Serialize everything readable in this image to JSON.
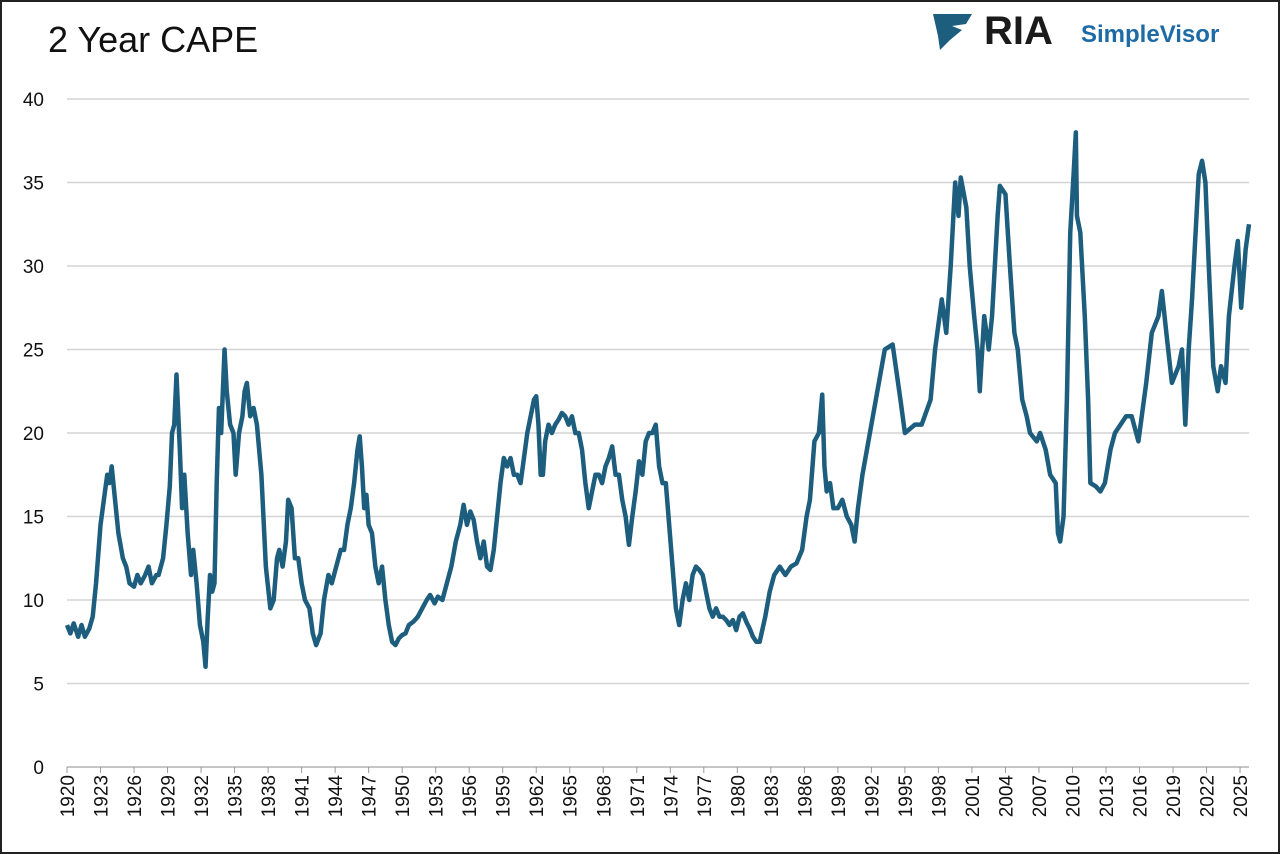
{
  "chart_data": {
    "type": "line",
    "title": "2 Year CAPE",
    "logo": {
      "brand": "RIA",
      "product": "SimpleVisor"
    },
    "xlim": [
      1920,
      2025.8
    ],
    "ylim": [
      0,
      40
    ],
    "yticks": [
      0,
      5,
      10,
      15,
      20,
      25,
      30,
      35,
      40
    ],
    "xticks": [
      1920,
      1923,
      1926,
      1929,
      1932,
      1935,
      1938,
      1941,
      1944,
      1947,
      1950,
      1953,
      1956,
      1959,
      1962,
      1965,
      1968,
      1971,
      1974,
      1977,
      1980,
      1983,
      1986,
      1989,
      1992,
      1995,
      1998,
      2001,
      2004,
      2007,
      2010,
      2013,
      2016,
      2019,
      2022,
      2025
    ],
    "grid": true,
    "series": [
      {
        "name": "2 Year CAPE",
        "color": "#1d5d7e",
        "x": [
          1920,
          1920.3,
          1920.6,
          1921,
          1921.3,
          1921.6,
          1922,
          1922.3,
          1922.6,
          1923,
          1923.3,
          1923.6,
          1923.8,
          1924,
          1924.3,
          1924.6,
          1925,
          1925.3,
          1925.6,
          1926,
          1926.3,
          1926.6,
          1927,
          1927.3,
          1927.6,
          1928,
          1928.2,
          1928.6,
          1928.9,
          1929.2,
          1929.4,
          1929.6,
          1929.8,
          1930.1,
          1930.3,
          1930.5,
          1930.8,
          1931.1,
          1931.3,
          1931.6,
          1931.9,
          1932.2,
          1932.4,
          1932.6,
          1932.8,
          1933,
          1933.2,
          1933.4,
          1933.6,
          1933.8,
          1934.1,
          1934.3,
          1934.6,
          1934.9,
          1935.1,
          1935.4,
          1935.7,
          1935.9,
          1936.1,
          1936.4,
          1936.7,
          1937,
          1937.4,
          1937.8,
          1938.2,
          1938.5,
          1938.8,
          1939,
          1939.3,
          1939.6,
          1939.8,
          1940.1,
          1940.4,
          1940.7,
          1941,
          1941.3,
          1941.7,
          1942,
          1942.3,
          1942.7,
          1943,
          1943.4,
          1943.7,
          1944.1,
          1944.5,
          1944.8,
          1945.1,
          1945.4,
          1945.7,
          1946,
          1946.2,
          1946.4,
          1946.6,
          1946.8,
          1947,
          1947.3,
          1947.6,
          1947.9,
          1948.2,
          1948.5,
          1948.8,
          1949.1,
          1949.4,
          1949.7,
          1950,
          1950.3,
          1950.6,
          1951,
          1951.4,
          1951.8,
          1952.2,
          1952.5,
          1952.9,
          1953.2,
          1953.6,
          1954,
          1954.4,
          1954.8,
          1955.2,
          1955.5,
          1955.8,
          1956.1,
          1956.4,
          1956.7,
          1957,
          1957.3,
          1957.6,
          1957.9,
          1958.2,
          1958.5,
          1958.8,
          1959.1,
          1959.4,
          1959.7,
          1960,
          1960.3,
          1960.6,
          1960.9,
          1961.2,
          1961.5,
          1961.8,
          1962,
          1962.2,
          1962.4,
          1962.6,
          1962.8,
          1963.1,
          1963.4,
          1963.7,
          1964,
          1964.3,
          1964.6,
          1964.9,
          1965.2,
          1965.5,
          1965.8,
          1966.1,
          1966.4,
          1966.7,
          1967,
          1967.3,
          1967.6,
          1967.9,
          1968.2,
          1968.5,
          1968.8,
          1969.1,
          1969.4,
          1969.7,
          1970,
          1970.3,
          1970.6,
          1970.9,
          1971.2,
          1971.5,
          1971.8,
          1972.1,
          1972.4,
          1972.7,
          1973,
          1973.3,
          1973.6,
          1973.9,
          1974.2,
          1974.5,
          1974.8,
          1975.1,
          1975.4,
          1975.7,
          1976,
          1976.3,
          1976.6,
          1976.9,
          1977.2,
          1977.5,
          1977.8,
          1978.1,
          1978.4,
          1978.7,
          1979,
          1979.3,
          1979.6,
          1979.9,
          1980.2,
          1980.5,
          1980.8,
          1981.1,
          1981.4,
          1981.7,
          1982,
          1982.5,
          1982.9,
          1983.3,
          1983.8,
          1984.3,
          1984.8,
          1985.3,
          1985.8,
          1986.2,
          1986.5,
          1986.9,
          1987.3,
          1987.6,
          1987.8,
          1988,
          1988.3,
          1988.6,
          1989,
          1989.4,
          1989.8,
          1990.2,
          1990.5,
          1990.8,
          1991.2,
          1991.6,
          1992,
          1992.4,
          1992.8,
          1993.2,
          1993.9,
          1994.6,
          1995,
          1995.9,
          1996.5,
          1997.3,
          1997.7,
          1998.3,
          1998.7,
          1999.1,
          1999.5,
          1999.8,
          2000,
          2000.5,
          2000.8,
          2001.2,
          2001.5,
          2001.7,
          2002.1,
          2002.5,
          2002.8,
          2003.3,
          2003.5,
          2004,
          2004.4,
          2004.8,
          2005.1,
          2005.5,
          2005.9,
          2006.2,
          2006.8,
          2007.1,
          2007.6,
          2008,
          2008.5,
          2008.7,
          2008.9,
          2009.2,
          2009.5,
          2009.8,
          2010.1,
          2010.3,
          2010.4,
          2010.7,
          2011.1,
          2011.4,
          2011.6,
          2012.1,
          2012.5,
          2012.9,
          2013.4,
          2013.8,
          2014.3,
          2014.8,
          2015.3,
          2015.9,
          2016.2,
          2016.6,
          2017.1,
          2017.7,
          2018,
          2018.4,
          2018.9,
          2019.5,
          2019.8,
          2020.1,
          2020.4,
          2020.7,
          2021.1,
          2021.3,
          2021.6,
          2021.9,
          2022.2,
          2022.6,
          2023,
          2023.3,
          2023.7,
          2024,
          2024.5,
          2024.8,
          2025.1,
          2025.5,
          2025.8
        ],
        "values": [
          8.5,
          8.0,
          8.6,
          7.8,
          8.5,
          7.8,
          8.3,
          9,
          11,
          14.5,
          16,
          17.5,
          17,
          18,
          16,
          14,
          12.5,
          12,
          11,
          10.8,
          11.5,
          11,
          11.5,
          12,
          11,
          11.5,
          11.5,
          12.5,
          14.5,
          16.8,
          20,
          20.5,
          23.5,
          19,
          15.5,
          17.5,
          14,
          11.5,
          13,
          11,
          8.5,
          7.5,
          6,
          9,
          11.5,
          10.5,
          11,
          17,
          21.5,
          20,
          25,
          22.5,
          20.5,
          20,
          17.5,
          20,
          21,
          22.5,
          23,
          21,
          21.5,
          20.5,
          17.5,
          12,
          9.5,
          10,
          12.5,
          13,
          12,
          13.5,
          16,
          15.5,
          12.5,
          12.5,
          11,
          10,
          9.5,
          8,
          7.3,
          8,
          10,
          11.5,
          11,
          12,
          13,
          13,
          14.5,
          15.5,
          17,
          19,
          19.8,
          18,
          15.5,
          16.3,
          14.5,
          14,
          12,
          11,
          12,
          10,
          8.5,
          7.5,
          7.3,
          7.7,
          7.9,
          8,
          8.5,
          8.7,
          9,
          9.5,
          10,
          10.3,
          9.8,
          10.2,
          10,
          11,
          12,
          13.5,
          14.5,
          15.7,
          14.5,
          15.3,
          14.8,
          13.5,
          12.5,
          13.5,
          12,
          11.8,
          13,
          15,
          17,
          18.5,
          18,
          18.5,
          17.5,
          17.5,
          17,
          18.5,
          20,
          21,
          22,
          22.2,
          20.5,
          17.5,
          17.5,
          19.5,
          20.5,
          20,
          20.5,
          20.8,
          21.2,
          21,
          20.5,
          21,
          20,
          20,
          19,
          17,
          15.5,
          16.5,
          17.5,
          17.5,
          17,
          18,
          18.5,
          19.2,
          17.5,
          17.5,
          16,
          15,
          13.3,
          15,
          16.5,
          18.3,
          17.5,
          19.5,
          20,
          20,
          20.5,
          18,
          17,
          17,
          14.5,
          12,
          9.5,
          8.5,
          10,
          11,
          10,
          11.5,
          12,
          11.8,
          11.5,
          10.5,
          9.5,
          9,
          9.5,
          9,
          9,
          8.8,
          8.5,
          8.8,
          8.2,
          9,
          9.2,
          8.7,
          8.3,
          7.8,
          7.5,
          7.5,
          9,
          10.5,
          11.5,
          12,
          11.5,
          12,
          12.2,
          13,
          15,
          16,
          19.5,
          20,
          22.3,
          18,
          16.5,
          17,
          15.5,
          15.5,
          16,
          15,
          14.5,
          13.5,
          15.5,
          17.5,
          19,
          20.5,
          22,
          23.5,
          25,
          25.3,
          22,
          20,
          20.5,
          20.5,
          22,
          25,
          28,
          26,
          30,
          35,
          33,
          35.3,
          33.5,
          30,
          27,
          25,
          22.5,
          27,
          25,
          27,
          33,
          34.8,
          34.3,
          30,
          26,
          25,
          22,
          21,
          20,
          19.5,
          20,
          19,
          17.5,
          17,
          14,
          13.5,
          15,
          22,
          32,
          35.5,
          38,
          33,
          32,
          27,
          22,
          17,
          16.8,
          16.5,
          17,
          19,
          20,
          20.5,
          21,
          21,
          19.5,
          21,
          23,
          26,
          27,
          28.5,
          26,
          23,
          24,
          25,
          20.5,
          25,
          28,
          33,
          35.5,
          36.3,
          35,
          30,
          24,
          22.5,
          24,
          23,
          27,
          30,
          31.5,
          27.5,
          31,
          32.5
        ]
      }
    ]
  }
}
